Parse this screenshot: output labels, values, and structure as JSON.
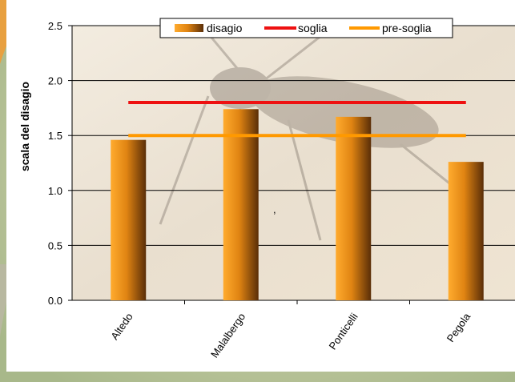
{
  "chart_data": {
    "type": "bar",
    "categories": [
      "Altedo",
      "Malalbergo",
      "Ponticelli",
      "Pegola"
    ],
    "series": [
      {
        "name": "disagio",
        "type": "bar",
        "color": "#e08a1a",
        "values": [
          1.46,
          1.74,
          1.67,
          1.26
        ]
      },
      {
        "name": "soglia",
        "type": "line",
        "color": "#ee1111",
        "values": [
          1.8,
          1.8,
          1.8,
          1.8
        ]
      },
      {
        "name": "pre-soglia",
        "type": "line",
        "color": "#ff9900",
        "values": [
          1.5,
          1.5,
          1.5,
          1.5
        ]
      }
    ],
    "ylabel": "scala del disagio",
    "ylim": [
      0,
      2.5
    ],
    "yticks": [
      "0.0",
      "0.5",
      "1.0",
      "1.5",
      "2.0",
      "2.5"
    ],
    "grid": true,
    "legend_position": "top",
    "stray_text": ","
  }
}
